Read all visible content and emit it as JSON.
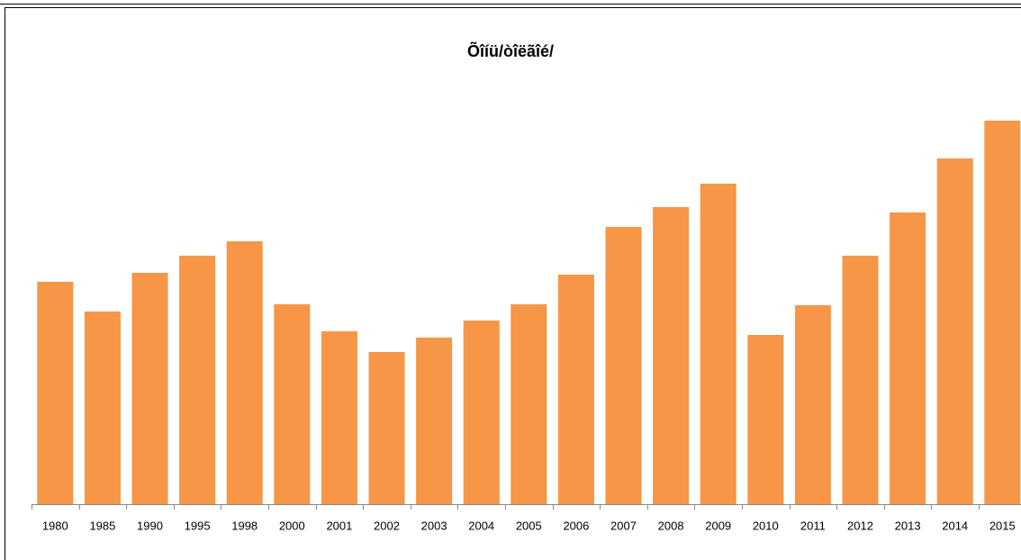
{
  "chart_data": {
    "type": "bar",
    "title": "Õîíü/òîëãîé/",
    "categories": [
      "1980",
      "1985",
      "1990",
      "1995",
      "1998",
      "2000",
      "2001",
      "2002",
      "2003",
      "2004",
      "2005",
      "2006",
      "2007",
      "2008",
      "2009",
      "2010",
      "2011",
      "2012",
      "2013",
      "2014",
      "2015"
    ],
    "values": [
      247,
      214,
      257,
      276,
      292,
      222,
      192,
      169,
      185,
      204,
      222,
      255,
      308,
      330,
      356,
      188,
      221,
      276,
      324,
      384,
      426
    ],
    "color": "#f79646",
    "ylim": [
      0,
      450
    ]
  }
}
